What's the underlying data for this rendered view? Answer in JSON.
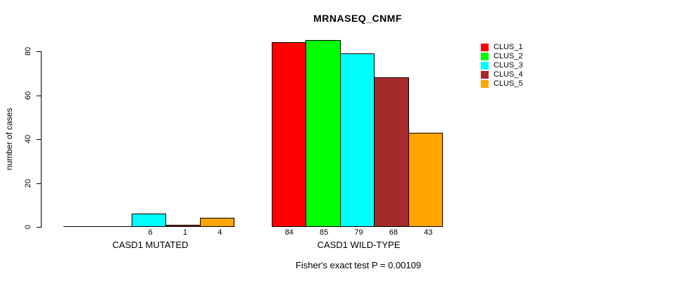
{
  "page": {
    "background": "#FFFFFF"
  },
  "chart_data": {
    "type": "bar",
    "title": "MRNASEQ_CNMF",
    "ylabel": "number of cases",
    "xlabel": "",
    "ylim": [
      0,
      80
    ],
    "yticks": [
      0,
      20,
      40,
      60,
      80
    ],
    "grid": false,
    "legend_position": "right",
    "series": [
      {
        "name": "CLUS_1",
        "color": "#FF0000"
      },
      {
        "name": "CLUS_2",
        "color": "#00FF00"
      },
      {
        "name": "CLUS_3",
        "color": "#00FFFF"
      },
      {
        "name": "CLUS_4",
        "color": "#A52A2A"
      },
      {
        "name": "CLUS_5",
        "color": "#FFA500"
      }
    ],
    "groups": [
      {
        "label": "CASD1 MUTATED",
        "values": [
          0,
          0,
          6,
          1,
          4
        ],
        "value_labels": [
          "",
          "",
          "6",
          "1",
          "4"
        ]
      },
      {
        "label": "CASD1 WILD-TYPE",
        "values": [
          84,
          85,
          79,
          68,
          43
        ],
        "value_labels": [
          "84",
          "85",
          "79",
          "68",
          "43"
        ]
      }
    ],
    "annotation": "Fisher's exact test P = 0.00109"
  }
}
